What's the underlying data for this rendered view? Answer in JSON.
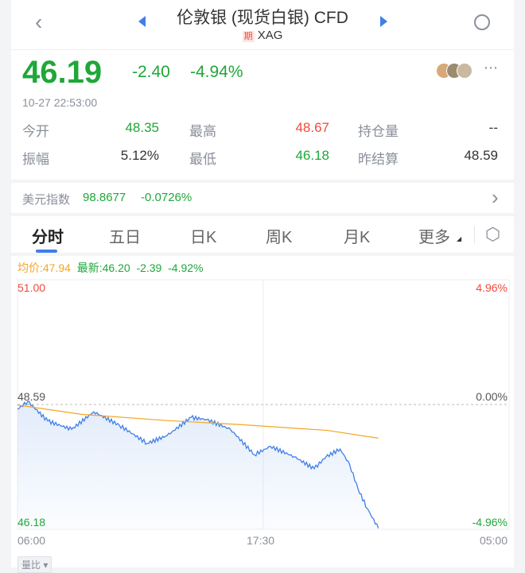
{
  "header": {
    "title": "伦敦银 (现货白银) CFD",
    "badge": "期",
    "symbol": "XAG"
  },
  "quote": {
    "price": "46.19",
    "change": "-2.40",
    "change_pct": "-4.94%",
    "time": "10-27 22:53:00"
  },
  "stats": [
    {
      "label": "今开",
      "value": "48.35",
      "color": "green"
    },
    {
      "label": "最高",
      "value": "48.67",
      "color": "red"
    },
    {
      "label": "持仓量",
      "value": "--",
      "color": "dark"
    },
    {
      "label": "振幅",
      "value": "5.12%",
      "color": "dark"
    },
    {
      "label": "最低",
      "value": "46.18",
      "color": "green"
    },
    {
      "label": "昨结算",
      "value": "48.59",
      "color": "dark"
    }
  ],
  "dxy": {
    "label": "美元指数",
    "value": "98.8677",
    "change": "-0.0726%"
  },
  "tabs": [
    "分时",
    "五日",
    "日K",
    "周K",
    "月K",
    "更多"
  ],
  "active_tab": "分时",
  "legend": {
    "avg": "均价:47.94",
    "latest": "最新:46.20",
    "change": "-2.39",
    "pct": "-4.92%"
  },
  "volume_button": "量比",
  "colors": {
    "up": "#f04a3c",
    "down": "#1fa739",
    "line": "#3f7fe6",
    "avg": "#f5a623",
    "tab": "#3f7fe6"
  },
  "chart_data": {
    "type": "line",
    "y_labels": {
      "top": "51.00",
      "mid": "48.59",
      "bottom": "46.18"
    },
    "pct_labels": {
      "top": "4.96%",
      "mid": "0.00%",
      "bottom": "-4.96%"
    },
    "x_labels": [
      "06:00",
      "17:30",
      "05:00"
    ],
    "ylim": [
      46.18,
      51.0
    ],
    "reference": 48.59,
    "series": [
      {
        "type": "price",
        "points": [
          [
            "06:00",
            48.5
          ],
          [
            "06:29",
            48.65
          ],
          [
            "07:25",
            48.27
          ],
          [
            "08:32",
            48.11
          ],
          [
            "09:34",
            48.45
          ],
          [
            "10:46",
            48.19
          ],
          [
            "12:04",
            47.84
          ],
          [
            "13:00",
            47.99
          ],
          [
            "14:07",
            48.34
          ],
          [
            "14:51",
            48.3
          ],
          [
            "15:58",
            48.11
          ],
          [
            "17:05",
            47.62
          ],
          [
            "17:50",
            47.78
          ],
          [
            "18:57",
            47.58
          ],
          [
            "19:53",
            47.35
          ],
          [
            "20:26",
            47.58
          ],
          [
            "21:06",
            47.73
          ],
          [
            "21:33",
            47.42
          ],
          [
            "21:56",
            46.96
          ],
          [
            "22:22",
            46.58
          ],
          [
            "22:53",
            46.2
          ]
        ]
      },
      {
        "type": "average",
        "points": [
          [
            "06:00",
            48.58
          ],
          [
            "09:00",
            48.4
          ],
          [
            "13:00",
            48.28
          ],
          [
            "16:30",
            48.2
          ],
          [
            "20:30",
            48.09
          ],
          [
            "22:53",
            47.94
          ]
        ]
      }
    ]
  }
}
